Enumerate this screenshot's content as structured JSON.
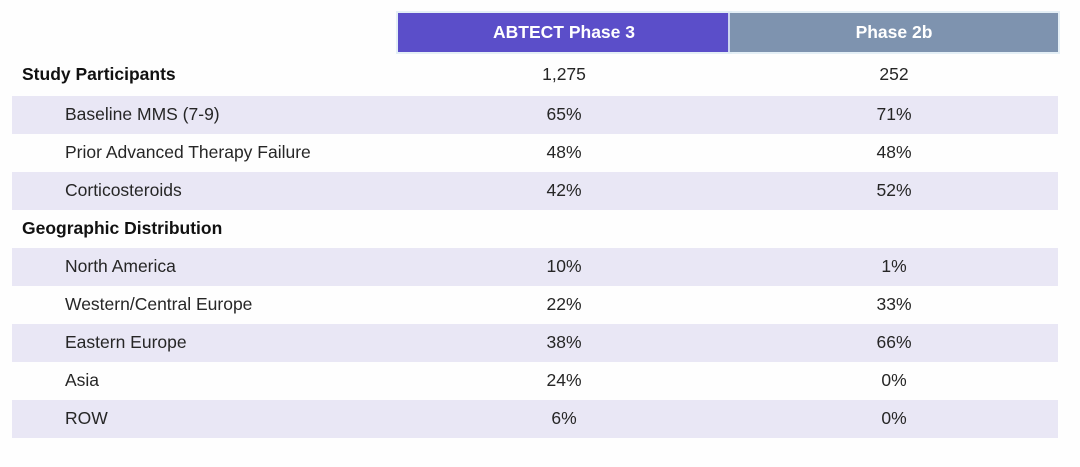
{
  "table": {
    "header": {
      "phase3_label": "ABTECT Phase 3",
      "phase2b_label": "Phase 2b"
    },
    "rows": [
      {
        "label": "Study Participants",
        "phase3": "1,275",
        "phase2b": "252",
        "section": true,
        "shaded": false
      },
      {
        "label": "Baseline MMS (7-9)",
        "phase3": "65%",
        "phase2b": "71%",
        "section": false,
        "shaded": true
      },
      {
        "label": "Prior Advanced Therapy Failure",
        "phase3": "48%",
        "phase2b": "48%",
        "section": false,
        "shaded": false
      },
      {
        "label": "Corticosteroids",
        "phase3": "42%",
        "phase2b": "52%",
        "section": false,
        "shaded": true
      },
      {
        "label": "Geographic Distribution",
        "phase3": "",
        "phase2b": "",
        "section": true,
        "shaded": false
      },
      {
        "label": "North America",
        "phase3": "10%",
        "phase2b": "1%",
        "section": false,
        "shaded": true
      },
      {
        "label": "Western/Central Europe",
        "phase3": "22%",
        "phase2b": "33%",
        "section": false,
        "shaded": false
      },
      {
        "label": "Eastern Europe",
        "phase3": "38%",
        "phase2b": "66%",
        "section": false,
        "shaded": true
      },
      {
        "label": "Asia",
        "phase3": "24%",
        "phase2b": "0%",
        "section": false,
        "shaded": false
      },
      {
        "label": "ROW",
        "phase3": "6%",
        "phase2b": "0%",
        "section": false,
        "shaded": true
      }
    ],
    "colors": {
      "phase3_header_bg": "#5b4ec9",
      "phase2b_header_bg": "#7e93af",
      "shaded_row_bg": "#e9e7f5",
      "header_text": "#ffffff",
      "body_text": "#262626"
    }
  }
}
